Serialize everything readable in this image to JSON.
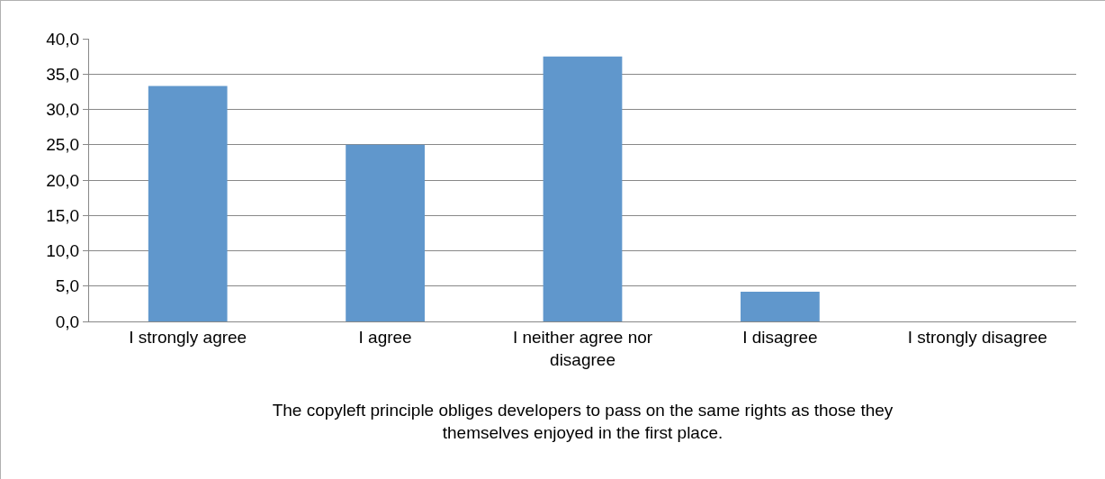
{
  "chart_data": {
    "type": "bar",
    "categories": [
      "I strongly agree",
      "I agree",
      "I neither agree nor disagree",
      "I disagree",
      "I strongly disagree"
    ],
    "values": [
      33.3,
      25.0,
      37.5,
      4.2,
      0.0
    ],
    "color": "#6097cc",
    "xlabel": "The copyleft principle obliges developers to pass on the same rights as those they themselves enjoyed in the first place.",
    "ylim": [
      0,
      40
    ],
    "yticks": [
      {
        "value": 0,
        "label": "0,0"
      },
      {
        "value": 5,
        "label": "5,0"
      },
      {
        "value": 10,
        "label": "10,0"
      },
      {
        "value": 15,
        "label": "15,0"
      },
      {
        "value": 20,
        "label": "20,0"
      },
      {
        "value": 25,
        "label": "25,0"
      },
      {
        "value": 30,
        "label": "30,0"
      },
      {
        "value": 35,
        "label": "35,0"
      },
      {
        "value": 40,
        "label": "40,0"
      }
    ],
    "grid": "y"
  }
}
